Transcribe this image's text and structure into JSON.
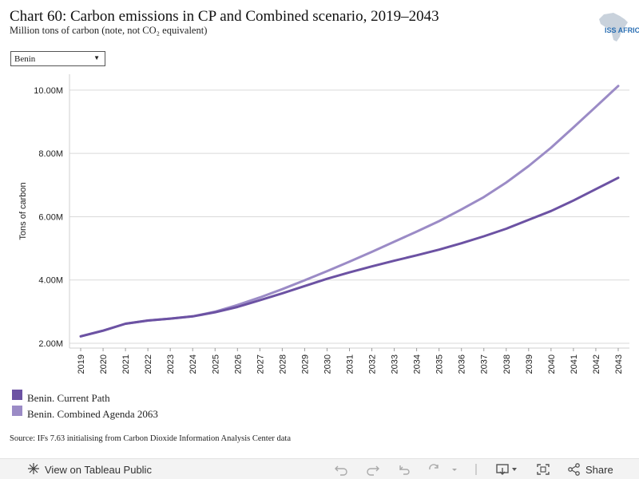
{
  "header": {
    "title": "Chart 60: Carbon emissions in CP and Combined scenario, 2019–2043",
    "subtitle": "Million tons of carbon (note, not CO₂ equivalent)",
    "logo_text": "ISS AFRICA"
  },
  "filter": {
    "country_value": "Benin"
  },
  "chart_data": {
    "type": "line",
    "ylabel": "Tons of carbon",
    "x": [
      2019,
      2020,
      2021,
      2022,
      2023,
      2024,
      2025,
      2026,
      2027,
      2028,
      2029,
      2030,
      2031,
      2032,
      2033,
      2034,
      2035,
      2036,
      2037,
      2038,
      2039,
      2040,
      2041,
      2042,
      2043
    ],
    "yticks": [
      "2.00M",
      "4.00M",
      "6.00M",
      "8.00M",
      "10.00M"
    ],
    "ylim": [
      1.85,
      10.5
    ],
    "grid": true,
    "legend_position": "bottom-left",
    "series": [
      {
        "name": "Benin. Current Path",
        "color": "#6c52a3",
        "values": [
          2.22,
          2.4,
          2.62,
          2.72,
          2.78,
          2.85,
          2.98,
          3.15,
          3.36,
          3.58,
          3.81,
          4.04,
          4.24,
          4.43,
          4.61,
          4.78,
          4.96,
          5.16,
          5.38,
          5.62,
          5.9,
          6.18,
          6.51,
          6.87,
          7.23
        ]
      },
      {
        "name": "Benin. Combined Agenda 2063",
        "color": "#9b8bc6",
        "values": [
          2.22,
          2.4,
          2.62,
          2.72,
          2.78,
          2.85,
          3.0,
          3.21,
          3.45,
          3.71,
          3.99,
          4.28,
          4.58,
          4.89,
          5.21,
          5.53,
          5.86,
          6.23,
          6.62,
          7.08,
          7.6,
          8.18,
          8.82,
          9.47,
          10.13
        ]
      }
    ]
  },
  "source": "Source: IFs 7.63 initialising from Carbon Dioxide Information Analysis Center data",
  "footer": {
    "view_label": "View on Tableau Public",
    "share_label": "Share",
    "icons": [
      "undo-icon",
      "redo-icon",
      "revert-icon",
      "refresh-icon",
      "download-icon",
      "fullscreen-icon",
      "share-icon"
    ]
  }
}
